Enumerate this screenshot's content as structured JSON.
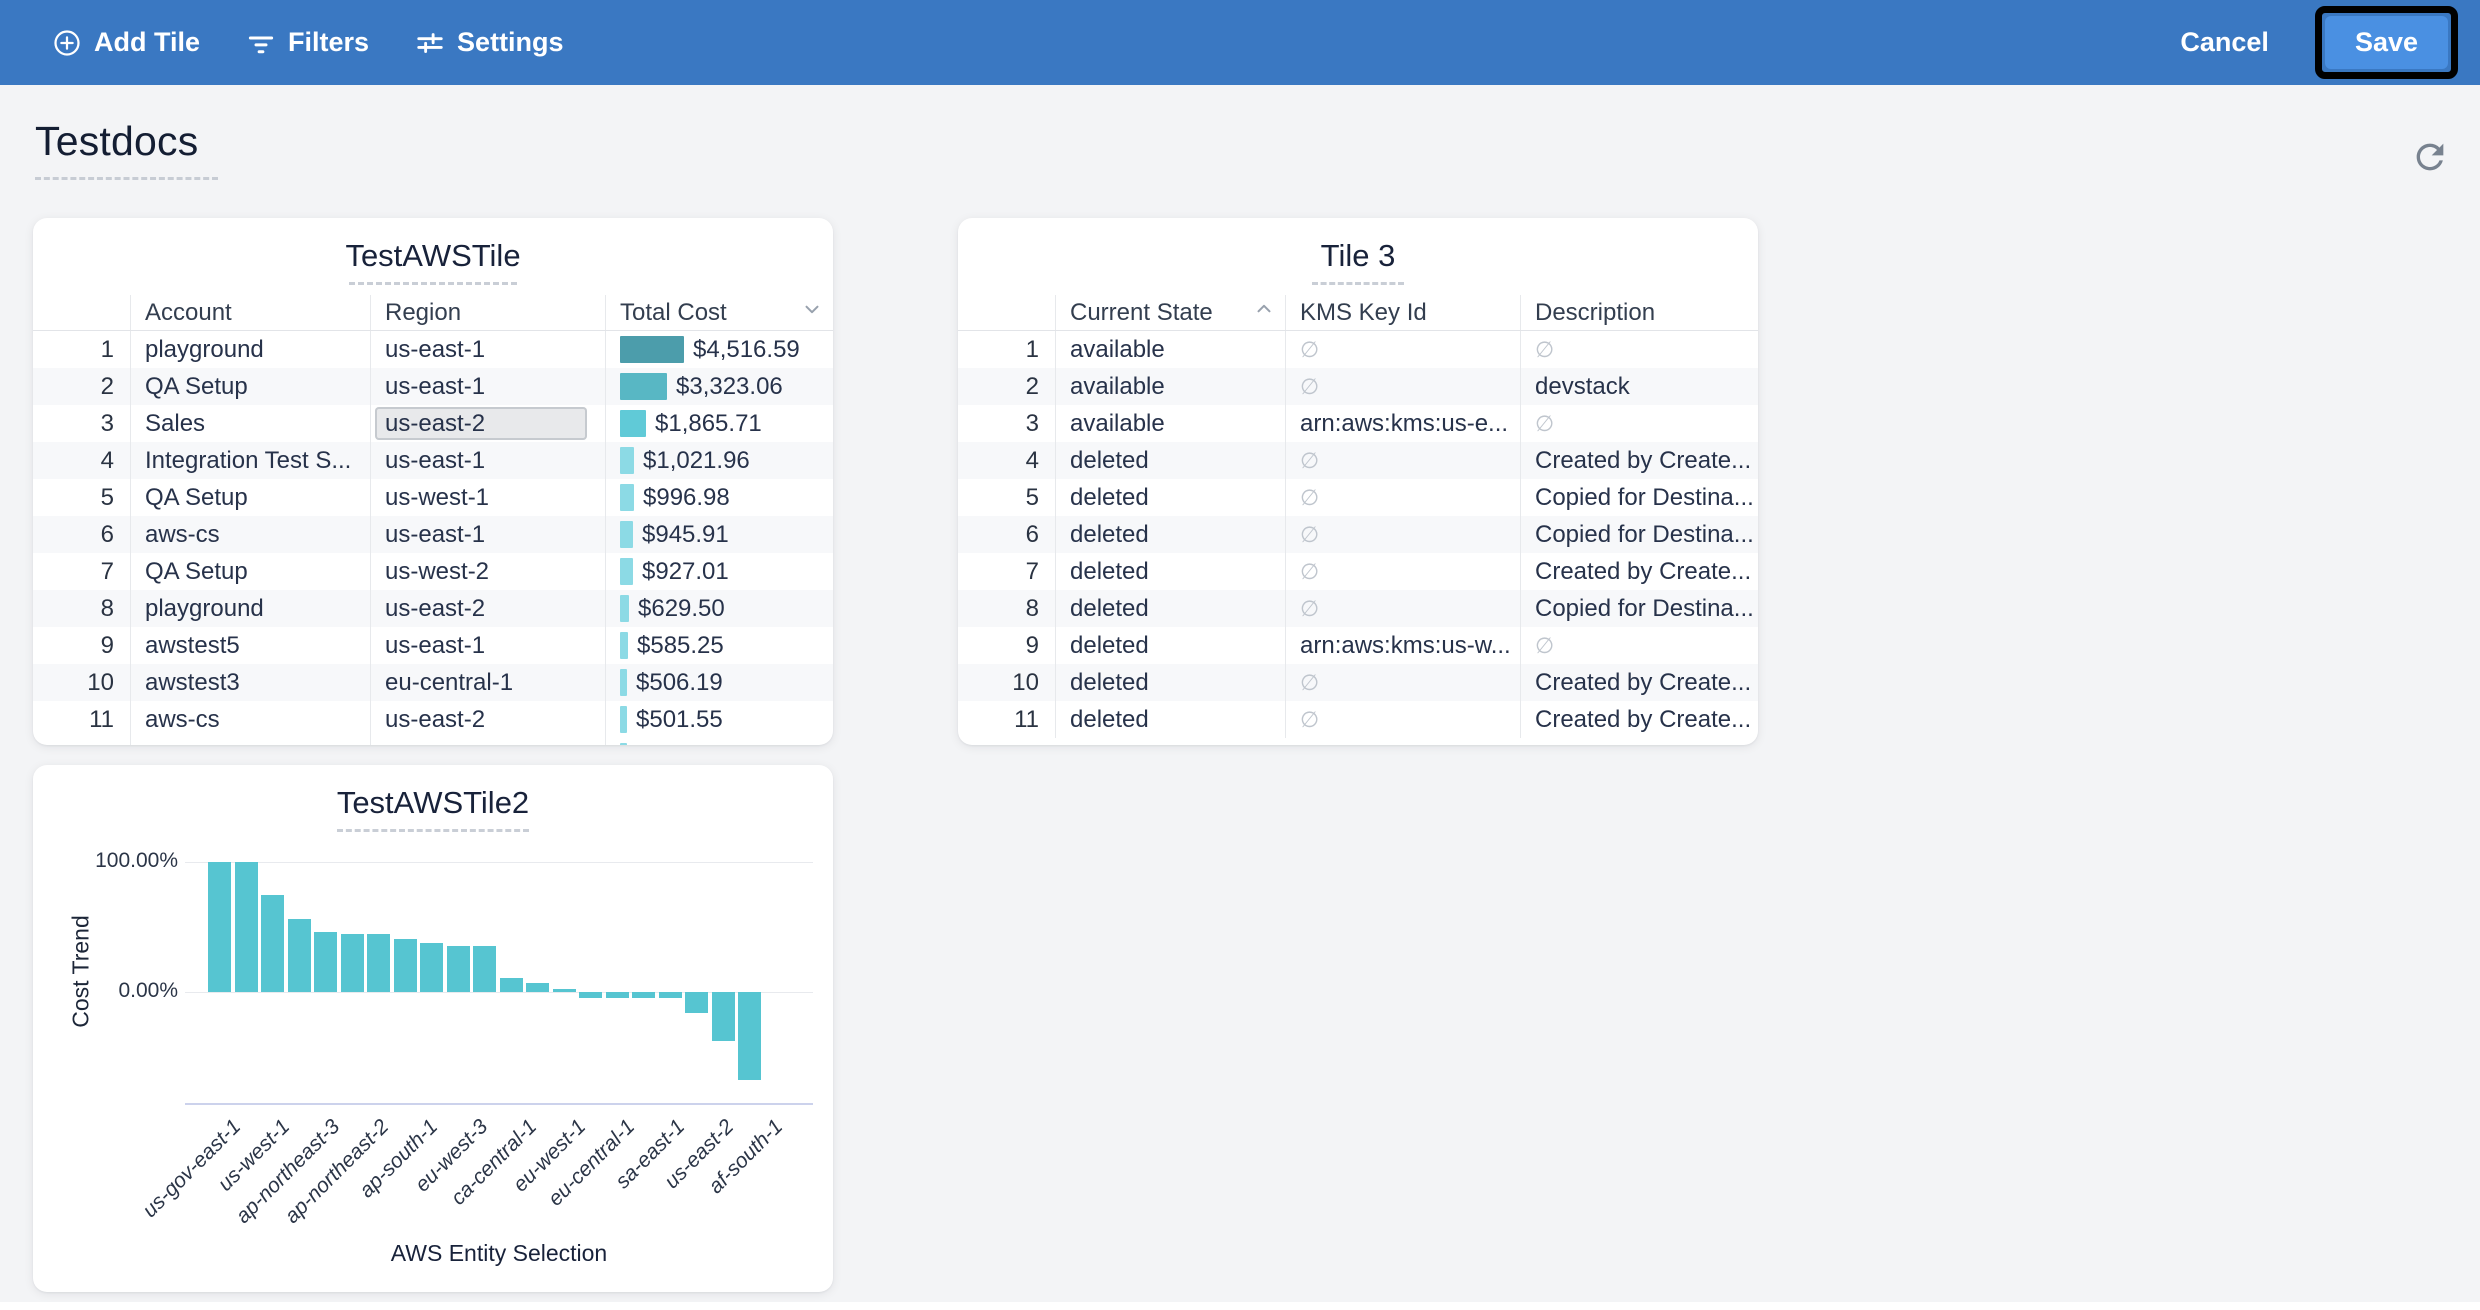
{
  "toolbar": {
    "add_tile": "Add Tile",
    "filters": "Filters",
    "settings": "Settings",
    "cancel": "Cancel",
    "save": "Save",
    "bg_color": "#3A78C2",
    "save_bg": "#4A90E2"
  },
  "page": {
    "title": "Testdocs"
  },
  "tile1": {
    "title": "TestAWSTile",
    "columns": [
      "Account",
      "Region",
      "Total Cost"
    ],
    "sort": {
      "column": "Total Cost",
      "direction": "desc"
    },
    "max_value": 4516.59,
    "rows": [
      {
        "n": "1",
        "account": "playground",
        "region": "us-east-1",
        "cost": "$4,516.59",
        "value": 4516.59,
        "bar_color": "#4C9DAB",
        "selected_region": false
      },
      {
        "n": "2",
        "account": "QA Setup",
        "region": "us-east-1",
        "cost": "$3,323.06",
        "value": 3323.06,
        "bar_color": "#58B7C4",
        "selected_region": false
      },
      {
        "n": "3",
        "account": "Sales",
        "region": "us-east-2",
        "cost": "$1,865.71",
        "value": 1865.71,
        "bar_color": "#60CAD7",
        "selected_region": true
      },
      {
        "n": "4",
        "account": "Integration Test S...",
        "region": "us-east-1",
        "cost": "$1,021.96",
        "value": 1021.96,
        "bar_color": "#8CDAE5",
        "selected_region": false
      },
      {
        "n": "5",
        "account": "QA Setup",
        "region": "us-west-1",
        "cost": "$996.98",
        "value": 996.98,
        "bar_color": "#8CDAE5",
        "selected_region": false
      },
      {
        "n": "6",
        "account": "aws-cs",
        "region": "us-east-1",
        "cost": "$945.91",
        "value": 945.91,
        "bar_color": "#8CDAE5",
        "selected_region": false
      },
      {
        "n": "7",
        "account": "QA Setup",
        "region": "us-west-2",
        "cost": "$927.01",
        "value": 927.01,
        "bar_color": "#8CDAE5",
        "selected_region": false
      },
      {
        "n": "8",
        "account": "playground",
        "region": "us-east-2",
        "cost": "$629.50",
        "value": 629.5,
        "bar_color": "#8CDAE5",
        "selected_region": false
      },
      {
        "n": "9",
        "account": "awstest5",
        "region": "us-east-1",
        "cost": "$585.25",
        "value": 585.25,
        "bar_color": "#8CDAE5",
        "selected_region": false
      },
      {
        "n": "10",
        "account": "awstest3",
        "region": "eu-central-1",
        "cost": "$506.19",
        "value": 506.19,
        "bar_color": "#8CDAE5",
        "selected_region": false
      },
      {
        "n": "11",
        "account": "aws-cs",
        "region": "us-east-2",
        "cost": "$501.55",
        "value": 501.55,
        "bar_color": "#8CDAE5",
        "selected_region": false
      }
    ],
    "partial_row": {
      "value": 498.0,
      "bar_color": "#8CDAE5"
    }
  },
  "tile2": {
    "title": "Tile 3",
    "columns": [
      "Current State",
      "KMS Key Id",
      "Description"
    ],
    "sort": {
      "column": "Current State",
      "direction": "asc"
    },
    "null_symbol": "∅",
    "rows": [
      {
        "n": "1",
        "state": "available",
        "kms": null,
        "description": null
      },
      {
        "n": "2",
        "state": "available",
        "kms": null,
        "description": "devstack"
      },
      {
        "n": "3",
        "state": "available",
        "kms": "arn:aws:kms:us-e...",
        "description": null
      },
      {
        "n": "4",
        "state": "deleted",
        "kms": null,
        "description": "Created by Create..."
      },
      {
        "n": "5",
        "state": "deleted",
        "kms": null,
        "description": "Copied for Destina..."
      },
      {
        "n": "6",
        "state": "deleted",
        "kms": null,
        "description": "Copied for Destina..."
      },
      {
        "n": "7",
        "state": "deleted",
        "kms": null,
        "description": "Created by Create..."
      },
      {
        "n": "8",
        "state": "deleted",
        "kms": null,
        "description": "Copied for Destina..."
      },
      {
        "n": "9",
        "state": "deleted",
        "kms": "arn:aws:kms:us-w...",
        "description": null
      },
      {
        "n": "10",
        "state": "deleted",
        "kms": null,
        "description": "Created by Create..."
      },
      {
        "n": "11",
        "state": "deleted",
        "kms": null,
        "description": "Created by Create..."
      }
    ]
  },
  "chart_data": {
    "type": "bar",
    "title": "TestAWSTile2",
    "xlabel": "AWS Entity Selection",
    "ylabel": "Cost Trend",
    "yticks": [
      "100.00%",
      "0.00%"
    ],
    "ylim": [
      -75,
      105
    ],
    "grid": true,
    "bar_color": "#56C5D1",
    "values": [
      100,
      100,
      74.5,
      56.5,
      46.5,
      44.5,
      45,
      41,
      37.5,
      35.5,
      35.5,
      10.5,
      7,
      2,
      -4.5,
      -4.5,
      -4.5,
      -4.5,
      -16,
      -38,
      -67.5
    ],
    "categories": [
      "us-gov-east-1",
      "us-west-1",
      "ap-northeast-3",
      "ap-northeast-2",
      "ap-south-1",
      "eu-west-3",
      "ca-central-1",
      "eu-west-1",
      "eu-central-1",
      "sa-east-1",
      "us-east-2",
      "af-south-1"
    ]
  }
}
